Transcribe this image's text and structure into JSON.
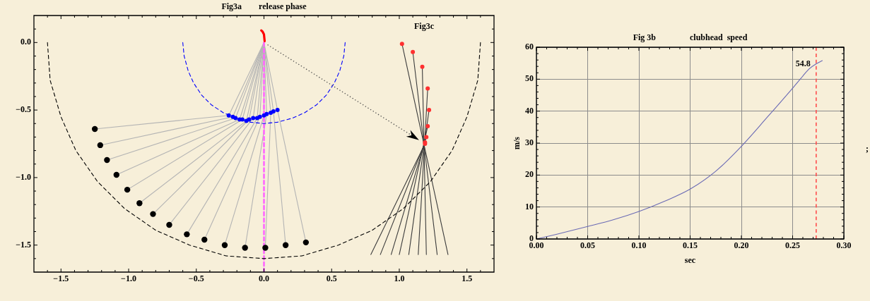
{
  "chart_data": [
    {
      "type": "scatter",
      "title": "Fig3a        release phase",
      "xlim": [
        -1.7,
        1.7
      ],
      "ylim": [
        -1.7,
        0.2
      ],
      "xticks": [
        {
          "value": -1.6,
          "label": null
        },
        {
          "value": -1.5,
          "label": "−1.5"
        },
        {
          "value": -1.4,
          "label": null
        },
        {
          "value": -1.3,
          "label": null
        },
        {
          "value": -1.2,
          "label": null
        },
        {
          "value": -1.1,
          "label": null
        },
        {
          "value": -1.0,
          "label": "−1.0"
        },
        {
          "value": -0.9,
          "label": null
        },
        {
          "value": -0.8,
          "label": null
        },
        {
          "value": -0.7,
          "label": null
        },
        {
          "value": -0.6,
          "label": null
        },
        {
          "value": -0.5,
          "label": "−0.5"
        },
        {
          "value": -0.4,
          "label": null
        },
        {
          "value": -0.3,
          "label": null
        },
        {
          "value": -0.2,
          "label": null
        },
        {
          "value": -0.1,
          "label": null
        },
        {
          "value": 0,
          "label": "0.0"
        },
        {
          "value": 0.1,
          "label": null
        },
        {
          "value": 0.2,
          "label": null
        },
        {
          "value": 0.3,
          "label": null
        },
        {
          "value": 0.4,
          "label": null
        },
        0.5,
        {
          "value": 0.6,
          "label": null
        },
        {
          "value": 0.7,
          "label": null
        },
        {
          "value": 0.8,
          "label": null
        },
        {
          "value": 0.9,
          "label": null
        },
        {
          "value": 1.0,
          "label": "1.0"
        },
        {
          "value": 1.1,
          "label": null
        },
        {
          "value": 1.2,
          "label": null
        },
        {
          "value": 1.3,
          "label": null
        },
        {
          "value": 1.4,
          "label": null
        },
        1.5,
        {
          "value": 1.6,
          "label": null
        }
      ],
      "yticks": [
        {
          "value": -1.6,
          "label": null
        },
        {
          "value": -1.5,
          "label": "−1.5"
        },
        {
          "value": -1.4,
          "label": null
        },
        {
          "value": -1.3,
          "label": null
        },
        {
          "value": -1.2,
          "label": null
        },
        {
          "value": -1.1,
          "label": null
        },
        {
          "value": -1.0,
          "label": "−1.0"
        },
        {
          "value": -0.9,
          "label": null
        },
        {
          "value": -0.8,
          "label": null
        },
        {
          "value": -0.7,
          "label": null
        },
        {
          "value": -0.6,
          "label": null
        },
        {
          "value": -0.5,
          "label": "−0.5"
        },
        {
          "value": -0.4,
          "label": null
        },
        {
          "value": -0.3,
          "label": null
        },
        {
          "value": -0.2,
          "label": null
        },
        {
          "value": -0.1,
          "label": null
        },
        {
          "value": 0,
          "label": "0.0"
        },
        {
          "value": 0.1,
          "label": null
        }
      ],
      "annotations": [
        "Fig3c"
      ],
      "series": [
        {
          "type": "line",
          "color": "#ff0000",
          "x": [
            -0.02,
            -0.01,
            0,
            0.005
          ],
          "values": [
            0.09,
            0.08,
            0.06,
            0.01
          ]
        },
        {
          "color": "#0000ff",
          "marker": "circle",
          "x": [
            -0.26,
            -0.23,
            -0.21,
            -0.18,
            -0.16,
            -0.13,
            -0.11,
            -0.08,
            -0.05,
            -0.03,
            0,
            0.02,
            0.05,
            0.07,
            0.1
          ],
          "values": [
            -0.54,
            -0.55,
            -0.56,
            -0.57,
            -0.57,
            -0.58,
            -0.57,
            -0.56,
            -0.56,
            -0.55,
            -0.54,
            -0.53,
            -0.52,
            -0.51,
            -0.5
          ]
        },
        {
          "color": "#000000",
          "marker": "circle",
          "x": [
            -1.25,
            -1.21,
            -1.16,
            -1.09,
            -1.01,
            -0.92,
            -0.82,
            -0.7,
            -0.57,
            -0.44,
            -0.29,
            -0.14,
            0.01,
            0.16,
            0.31
          ],
          "values": [
            -0.64,
            -0.76,
            -0.87,
            -0.98,
            -1.09,
            -1.19,
            -1.27,
            -1.35,
            -1.42,
            -1.46,
            -1.5,
            -1.52,
            -1.52,
            -1.5,
            -1.48
          ]
        },
        {
          "color": "#ff3030",
          "marker": "circle",
          "x": [
            1.02,
            1.1,
            1.17,
            1.21,
            1.22,
            1.21,
            1.2,
            1.19,
            1.19
          ],
          "values": [
            -0.01,
            -0.07,
            -0.18,
            -0.34,
            -0.5,
            -0.62,
            -0.7,
            -0.74,
            -0.75
          ]
        },
        {
          "type": "line",
          "color": "#000000",
          "line_style": "dashed",
          "x": [
            -1.6,
            -1.58,
            -1.5,
            -1.39,
            -1.23,
            -1.03,
            -0.8,
            -0.55,
            -0.28,
            0,
            0.28,
            0.55,
            0.8,
            1.03,
            1.23,
            1.39,
            1.5,
            1.58,
            1.6
          ],
          "values": [
            0,
            -0.28,
            -0.55,
            -0.8,
            -1.03,
            -1.23,
            -1.39,
            -1.5,
            -1.58,
            -1.6,
            -1.58,
            -1.5,
            -1.39,
            -1.23,
            -1.03,
            -0.8,
            -0.55,
            -0.28,
            0
          ]
        },
        {
          "type": "line",
          "color": "#0000ff",
          "line_style": "dashed",
          "x": [
            -0.6,
            -0.59,
            -0.56,
            -0.52,
            -0.46,
            -0.39,
            -0.3,
            -0.21,
            -0.1,
            0,
            0.1,
            0.21,
            0.3,
            0.39,
            0.46,
            0.52,
            0.56,
            0.59,
            0.6
          ],
          "values": [
            0,
            -0.1,
            -0.21,
            -0.3,
            -0.39,
            -0.46,
            -0.52,
            -0.56,
            -0.59,
            -0.6,
            -0.59,
            -0.56,
            -0.52,
            -0.46,
            -0.39,
            -0.3,
            -0.21,
            -0.1,
            0
          ]
        },
        {
          "type": "line",
          "color": "#ff66ff",
          "line_style": "dashed",
          "x": [
            0,
            0
          ],
          "values": [
            0,
            -1.7
          ]
        },
        {
          "type": "line",
          "color": "#b4b4b4",
          "x": [
            0,
            -0.26,
            -1.25
          ],
          "values": [
            0,
            -0.54,
            -0.64
          ]
        },
        {
          "type": "line",
          "color": "#b4b4b4",
          "x": [
            0,
            -0.23,
            -1.21
          ],
          "values": [
            0,
            -0.55,
            -0.76
          ]
        },
        {
          "type": "line",
          "color": "#b4b4b4",
          "x": [
            0,
            -0.21,
            -1.16
          ],
          "values": [
            0,
            -0.56,
            -0.87
          ]
        },
        {
          "type": "line",
          "color": "#b4b4b4",
          "x": [
            0,
            -0.18,
            -1.09
          ],
          "values": [
            0,
            -0.57,
            -0.98
          ]
        },
        {
          "type": "line",
          "color": "#b4b4b4",
          "x": [
            0,
            -0.16,
            -1.01
          ],
          "values": [
            0,
            -0.57,
            -1.09
          ]
        },
        {
          "type": "line",
          "color": "#b4b4b4",
          "x": [
            0,
            -0.13,
            -0.92
          ],
          "values": [
            0,
            -0.58,
            -1.19
          ]
        },
        {
          "type": "line",
          "color": "#b4b4b4",
          "x": [
            0,
            -0.11,
            -0.82
          ],
          "values": [
            0,
            -0.57,
            -1.27
          ]
        },
        {
          "type": "line",
          "color": "#b4b4b4",
          "x": [
            0,
            -0.08,
            -0.7
          ],
          "values": [
            0,
            -0.56,
            -1.35
          ]
        },
        {
          "type": "line",
          "color": "#b4b4b4",
          "x": [
            0,
            -0.05,
            -0.57
          ],
          "values": [
            0,
            -0.56,
            -1.42
          ]
        },
        {
          "type": "line",
          "color": "#b4b4b4",
          "x": [
            0,
            -0.03,
            -0.44
          ],
          "values": [
            0,
            -0.55,
            -1.46
          ]
        },
        {
          "type": "line",
          "color": "#b4b4b4",
          "x": [
            0,
            0,
            -0.29
          ],
          "values": [
            0,
            -0.54,
            -1.5
          ]
        },
        {
          "type": "line",
          "color": "#b4b4b4",
          "x": [
            0,
            0.02,
            -0.14
          ],
          "values": [
            0,
            -0.53,
            -1.52
          ]
        },
        {
          "type": "line",
          "color": "#b4b4b4",
          "x": [
            0,
            0.05,
            0.01
          ],
          "values": [
            0,
            -0.52,
            -1.52
          ]
        },
        {
          "type": "line",
          "color": "#b4b4b4",
          "x": [
            0,
            0.07,
            0.16
          ],
          "values": [
            0,
            -0.51,
            -1.5
          ]
        },
        {
          "type": "line",
          "color": "#b4b4b4",
          "x": [
            0,
            0.1,
            0.31
          ],
          "values": [
            0,
            -0.5,
            -1.48
          ]
        },
        {
          "type": "line",
          "color": "#3c3c3c",
          "x": [
            1.02,
            1.36
          ],
          "values": [
            -0.01,
            -1.57
          ]
        },
        {
          "type": "line",
          "color": "#3c3c3c",
          "x": [
            1.1,
            1.28
          ],
          "values": [
            -0.07,
            -1.57
          ]
        },
        {
          "type": "line",
          "color": "#3c3c3c",
          "x": [
            1.17,
            1.2
          ],
          "values": [
            -0.18,
            -1.57
          ]
        },
        {
          "type": "line",
          "color": "#3c3c3c",
          "x": [
            1.21,
            1.14
          ],
          "values": [
            -0.34,
            -1.57
          ]
        },
        {
          "type": "line",
          "color": "#3c3c3c",
          "x": [
            1.22,
            1.07
          ],
          "values": [
            -0.5,
            -1.57
          ]
        },
        {
          "type": "line",
          "color": "#3c3c3c",
          "x": [
            1.21,
            1.0
          ],
          "values": [
            -0.62,
            -1.57
          ]
        },
        {
          "type": "line",
          "color": "#3c3c3c",
          "x": [
            1.2,
            0.94
          ],
          "values": [
            -0.7,
            -1.57
          ]
        },
        {
          "type": "line",
          "color": "#3c3c3c",
          "x": [
            1.19,
            0.86
          ],
          "values": [
            -0.74,
            -1.57
          ]
        },
        {
          "type": "line",
          "color": "#3c3c3c",
          "x": [
            1.19,
            0.79
          ],
          "values": [
            -0.75,
            -1.57
          ]
        }
      ]
    },
    {
      "type": "line",
      "title": "Fig 3b                clubhead  speed",
      "xlabel": "sec",
      "ylabel": "m/s",
      "xlim": [
        0,
        0.3
      ],
      "ylim": [
        0,
        60
      ],
      "xticks": [
        {
          "value": 0,
          "label": "0.00"
        },
        {
          "value": 0.01,
          "label": null
        },
        {
          "value": 0.02,
          "label": null
        },
        {
          "value": 0.03,
          "label": null
        },
        {
          "value": 0.04,
          "label": null
        },
        {
          "value": 0.05,
          "label": "0.05"
        },
        {
          "value": 0.06,
          "label": null
        },
        {
          "value": 0.07,
          "label": null
        },
        {
          "value": 0.08,
          "label": null
        },
        {
          "value": 0.09,
          "label": null
        },
        {
          "value": 0.1,
          "label": "0.10"
        },
        {
          "value": 0.11,
          "label": null
        },
        {
          "value": 0.12,
          "label": null
        },
        {
          "value": 0.13,
          "label": null
        },
        {
          "value": 0.14,
          "label": null
        },
        {
          "value": 0.15,
          "label": "0.15"
        },
        {
          "value": 0.16,
          "label": null
        },
        {
          "value": 0.17,
          "label": null
        },
        {
          "value": 0.18,
          "label": null
        },
        {
          "value": 0.19,
          "label": null
        },
        {
          "value": 0.2,
          "label": "0.20"
        },
        {
          "value": 0.21,
          "label": null
        },
        {
          "value": 0.22,
          "label": null
        },
        {
          "value": 0.23,
          "label": null
        },
        {
          "value": 0.24,
          "label": null
        },
        {
          "value": 0.25,
          "label": "0.25"
        },
        {
          "value": 0.26,
          "label": null
        },
        {
          "value": 0.27,
          "label": null
        },
        {
          "value": 0.28,
          "label": null
        },
        {
          "value": 0.29,
          "label": null
        },
        {
          "value": 0.3,
          "label": "0.30"
        }
      ],
      "yticks": [
        0,
        {
          "value": 2,
          "label": null
        },
        {
          "value": 4,
          "label": null
        },
        {
          "value": 6,
          "label": null
        },
        {
          "value": 8,
          "label": null
        },
        10,
        {
          "value": 12,
          "label": null
        },
        {
          "value": 14,
          "label": null
        },
        {
          "value": 16,
          "label": null
        },
        {
          "value": 18,
          "label": null
        },
        20,
        {
          "value": 22,
          "label": null
        },
        {
          "value": 24,
          "label": null
        },
        {
          "value": 26,
          "label": null
        },
        {
          "value": 28,
          "label": null
        },
        30,
        {
          "value": 32,
          "label": null
        },
        {
          "value": 34,
          "label": null
        },
        {
          "value": 36,
          "label": null
        },
        {
          "value": 38,
          "label": null
        },
        40,
        {
          "value": 42,
          "label": null
        },
        {
          "value": 44,
          "label": null
        },
        {
          "value": 46,
          "label": null
        },
        {
          "value": 48,
          "label": null
        },
        50,
        {
          "value": 52,
          "label": null
        },
        {
          "value": 54,
          "label": null
        },
        {
          "value": 56,
          "label": null
        },
        {
          "value": 58,
          "label": null
        },
        60
      ],
      "grid": true,
      "x": [
        0,
        0.02,
        0.05,
        0.075,
        0.1,
        0.125,
        0.15,
        0.175,
        0.2,
        0.225,
        0.25,
        0.26,
        0.266,
        0.273,
        0.279
      ],
      "series": [
        {
          "color": "#6b6bb5",
          "values": [
            0,
            1.5,
            3.9,
            6,
            8.6,
            11.8,
            15.6,
            21.2,
            29,
            38,
            47.2,
            51,
            53.2,
            54.8,
            55.8
          ]
        }
      ],
      "ref_lines": [
        {
          "axis": "x",
          "value": 0.273,
          "color": "#ff4d4d",
          "line_style": "dashed"
        }
      ],
      "annotations": [
        {
          "text": "54.8",
          "x": 0.273,
          "y": 54.8
        },
        ";"
      ]
    }
  ]
}
